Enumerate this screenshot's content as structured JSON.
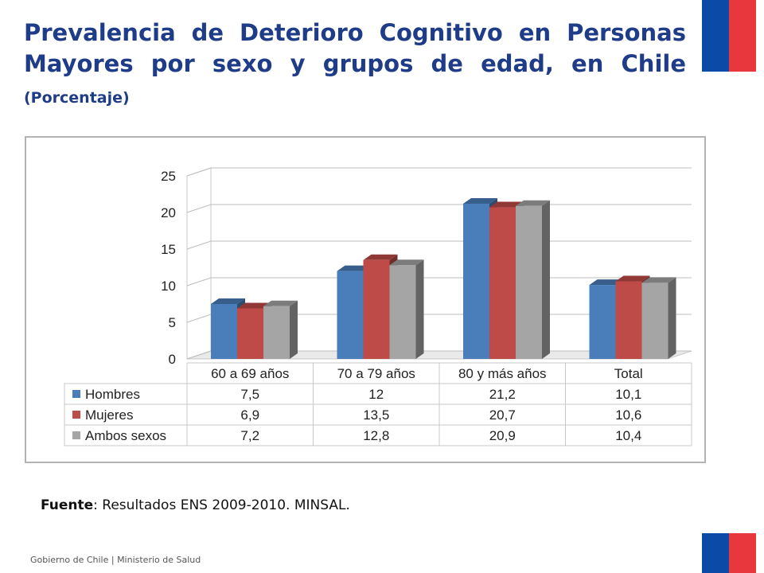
{
  "slide": {
    "title_main": "Prevalencia de Deterioro Cognitivo en Personas Mayores por sexo y grupos de edad, en Chile",
    "title_sub": "(Porcentaje)",
    "source_label": "Fuente",
    "source_text": ": Resultados ENS 2009-2010. MINSAL.",
    "footer": "Gobierno de Chile | Ministerio de Salud"
  },
  "colors": {
    "title": "#1f3c88",
    "flag_blue": "#0b4aa7",
    "flag_red": "#e8383d"
  },
  "chart_data": {
    "type": "bar",
    "categories": [
      "60 a 69 años",
      "70 a 79 años",
      "80 y más años",
      "Total"
    ],
    "series": [
      {
        "name": "Hombres",
        "values": [
          7.5,
          12,
          21.2,
          10.1
        ],
        "labels": [
          "7,5",
          "12",
          "21,2",
          "10,1"
        ],
        "color": "#4a7ebb"
      },
      {
        "name": "Mujeres",
        "values": [
          6.9,
          13.5,
          20.7,
          10.6
        ],
        "labels": [
          "6,9",
          "13,5",
          "20,7",
          "10,6"
        ],
        "color": "#be4b48"
      },
      {
        "name": "Ambos sexos",
        "values": [
          7.2,
          12.8,
          20.9,
          10.4
        ],
        "labels": [
          "7,2",
          "12,8",
          "20,9",
          "10,4"
        ],
        "color": "#a5a5a5"
      }
    ],
    "y_ticks": [
      "0",
      "5",
      "10",
      "15",
      "20",
      "25"
    ],
    "ylim": [
      0,
      25
    ],
    "grid": true,
    "legend": "data-table"
  }
}
